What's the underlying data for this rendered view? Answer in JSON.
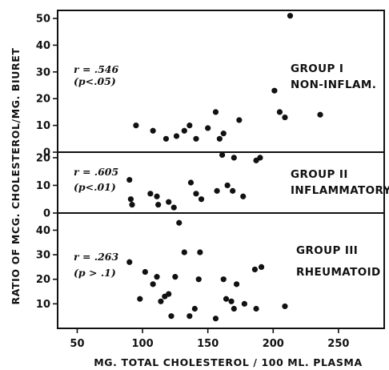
{
  "chart_data": {
    "type": "scatter",
    "ylabel": "RATIO OF MCG. CHOLESTEROL/MG. BIURET",
    "xlabel": "MG. TOTAL CHOLESTEROL / 100 ML. PLASMA",
    "xlim": [
      35,
      285
    ],
    "xticks": [
      50,
      100,
      150,
      200,
      250
    ],
    "xtick_labels": [
      "50",
      "100",
      "150",
      "200",
      "250"
    ],
    "grid": false,
    "panels": [
      {
        "group_label_1": "GROUP I",
        "group_label_2": "NON-INFLAM.",
        "r_label": "r = .546",
        "p_label": "(p<.05)",
        "ylim": [
          0,
          53
        ],
        "yticks": [
          0,
          10,
          20,
          30,
          40,
          50
        ],
        "ytick_labels": [
          "0",
          "10",
          "20",
          "30",
          "40",
          "50"
        ],
        "points": [
          {
            "x": 95,
            "y": 10
          },
          {
            "x": 108,
            "y": 8
          },
          {
            "x": 118,
            "y": 5
          },
          {
            "x": 126,
            "y": 6
          },
          {
            "x": 132,
            "y": 8
          },
          {
            "x": 136,
            "y": 10
          },
          {
            "x": 141,
            "y": 5
          },
          {
            "x": 150,
            "y": 9
          },
          {
            "x": 156,
            "y": 15
          },
          {
            "x": 159,
            "y": 5
          },
          {
            "x": 162,
            "y": 7
          },
          {
            "x": 174,
            "y": 12
          },
          {
            "x": 201,
            "y": 23
          },
          {
            "x": 205,
            "y": 15
          },
          {
            "x": 209,
            "y": 13
          },
          {
            "x": 213,
            "y": 51
          },
          {
            "x": 236,
            "y": 14
          }
        ]
      },
      {
        "group_label_1": "GROUP II",
        "group_label_2": "INFLAMMATORY",
        "r_label": "r = .605",
        "p_label": "(p<.01)",
        "ylim": [
          0,
          22
        ],
        "yticks": [
          0,
          10,
          20
        ],
        "ytick_labels": [
          "0",
          "10",
          "20"
        ],
        "points": [
          {
            "x": 90,
            "y": 12
          },
          {
            "x": 91,
            "y": 5
          },
          {
            "x": 92,
            "y": 3
          },
          {
            "x": 106,
            "y": 7
          },
          {
            "x": 111,
            "y": 6
          },
          {
            "x": 112,
            "y": 3
          },
          {
            "x": 120,
            "y": 4
          },
          {
            "x": 124,
            "y": 2
          },
          {
            "x": 137,
            "y": 11
          },
          {
            "x": 141,
            "y": 7
          },
          {
            "x": 145,
            "y": 5
          },
          {
            "x": 157,
            "y": 8
          },
          {
            "x": 161,
            "y": 21
          },
          {
            "x": 165,
            "y": 10
          },
          {
            "x": 169,
            "y": 8
          },
          {
            "x": 170,
            "y": 20
          },
          {
            "x": 177,
            "y": 6
          },
          {
            "x": 187,
            "y": 19
          },
          {
            "x": 190,
            "y": 20
          }
        ]
      },
      {
        "group_label_1": "GROUP III",
        "group_label_2": "RHEUMATOID",
        "r_label": "r = .263",
        "p_label": "(p > .1)",
        "ylim": [
          0,
          47
        ],
        "yticks": [
          10,
          20,
          30,
          40
        ],
        "ytick_labels": [
          "10",
          "20",
          "30",
          "40"
        ],
        "points": [
          {
            "x": 90,
            "y": 27
          },
          {
            "x": 98,
            "y": 12
          },
          {
            "x": 102,
            "y": 23
          },
          {
            "x": 108,
            "y": 18
          },
          {
            "x": 111,
            "y": 21
          },
          {
            "x": 114,
            "y": 11
          },
          {
            "x": 117,
            "y": 13
          },
          {
            "x": 120,
            "y": 14
          },
          {
            "x": 122,
            "y": 5
          },
          {
            "x": 125,
            "y": 21
          },
          {
            "x": 128,
            "y": 43
          },
          {
            "x": 132,
            "y": 31
          },
          {
            "x": 136,
            "y": 5
          },
          {
            "x": 140,
            "y": 8
          },
          {
            "x": 144,
            "y": 31
          },
          {
            "x": 143,
            "y": 20
          },
          {
            "x": 156,
            "y": 4
          },
          {
            "x": 162,
            "y": 20
          },
          {
            "x": 164,
            "y": 12
          },
          {
            "x": 168,
            "y": 11
          },
          {
            "x": 170,
            "y": 8
          },
          {
            "x": 172,
            "y": 18
          },
          {
            "x": 178,
            "y": 10
          },
          {
            "x": 186,
            "y": 24
          },
          {
            "x": 191,
            "y": 25
          },
          {
            "x": 209,
            "y": 9
          },
          {
            "x": 187,
            "y": 8
          }
        ]
      }
    ]
  }
}
